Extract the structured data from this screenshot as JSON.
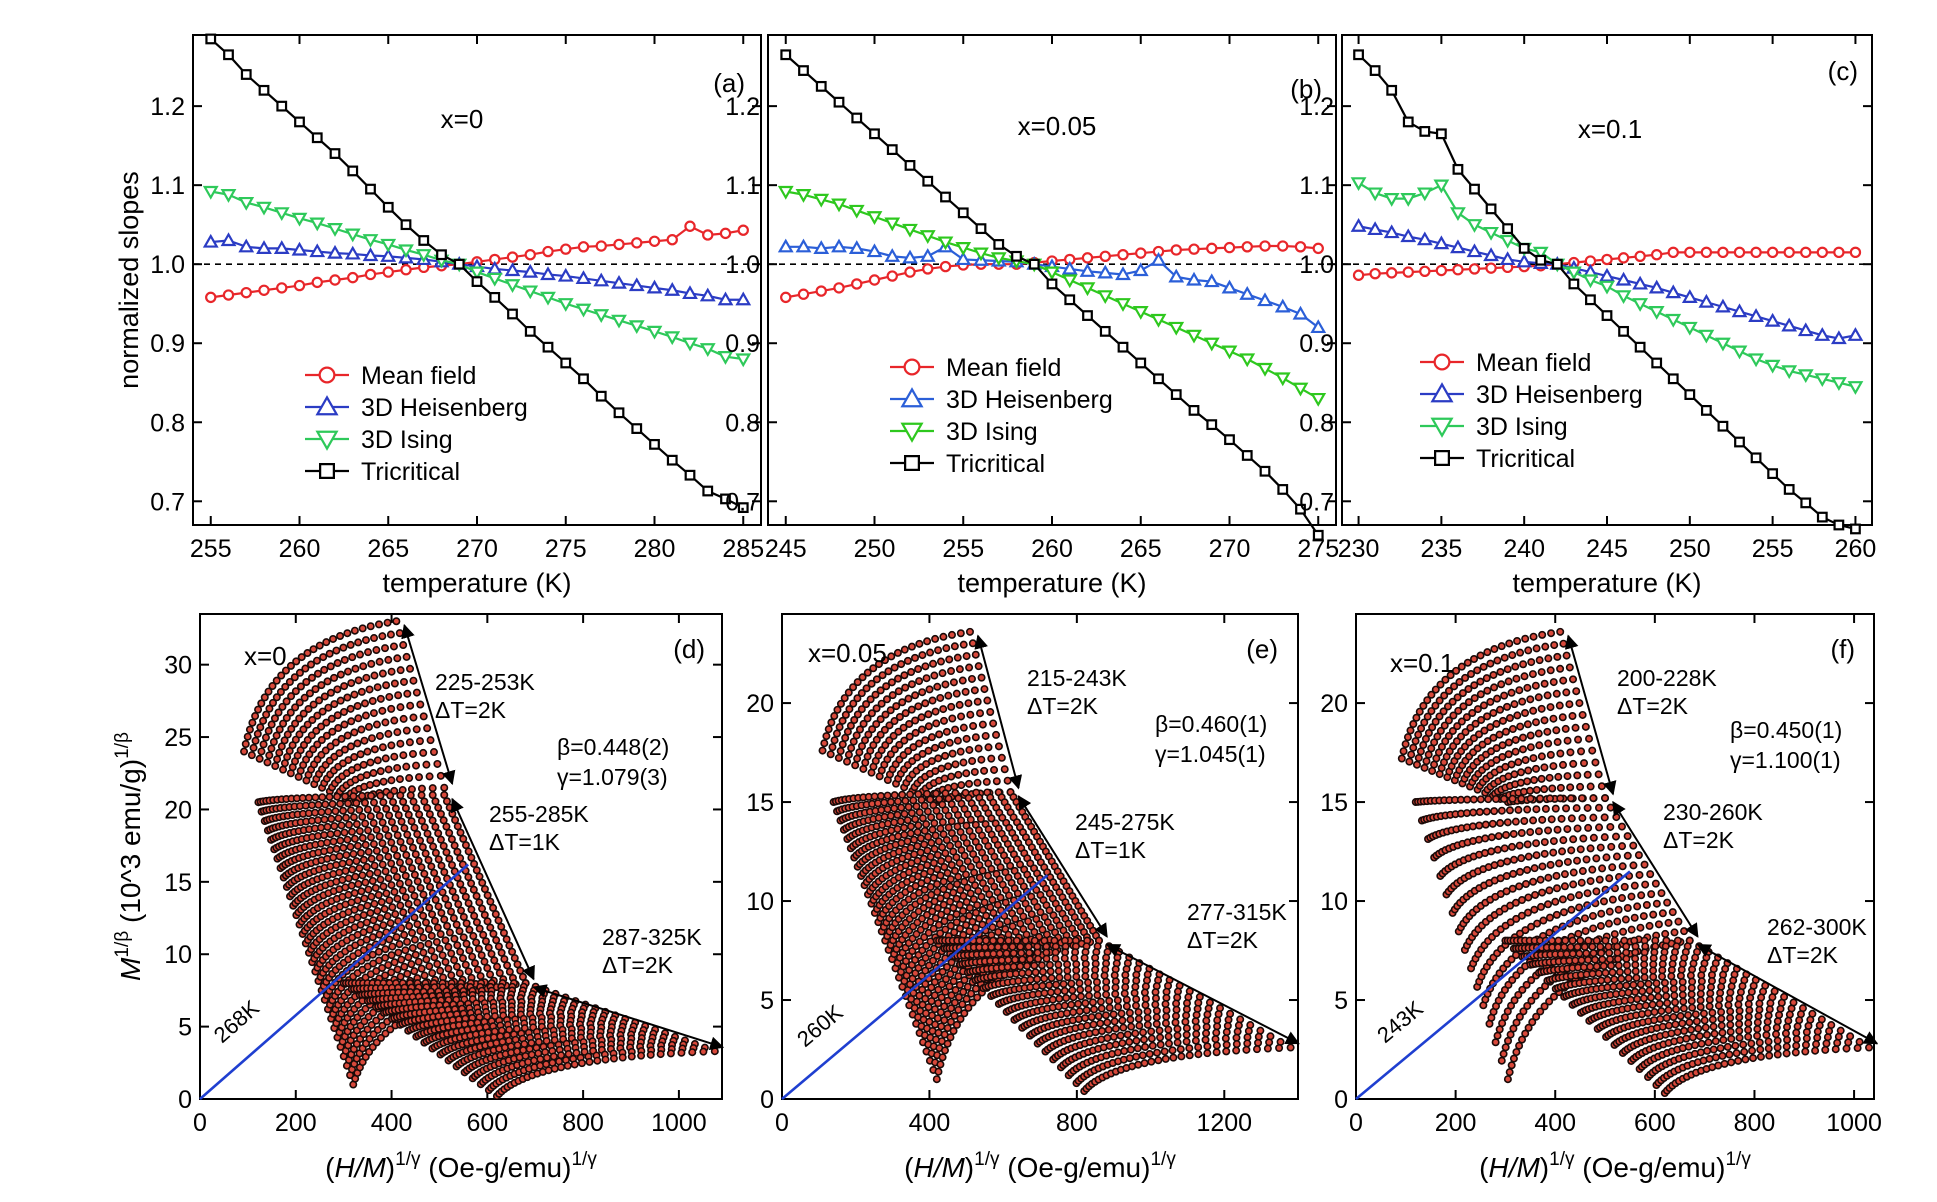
{
  "chart_data": [
    {
      "type": "line",
      "panel": "(a)",
      "annotation": "x=0",
      "xlabel": "temperature (K)",
      "ylabel": "normalized slopes",
      "xlim": [
        254,
        286
      ],
      "ylim": [
        0.67,
        1.29
      ],
      "xticks": [
        255,
        260,
        265,
        270,
        275,
        280,
        285
      ],
      "yticks": [
        0.7,
        0.8,
        0.9,
        1.0,
        1.1,
        1.2
      ],
      "reference_line": 1.0,
      "legend_position": "lower-left",
      "x": [
        255,
        256,
        257,
        258,
        259,
        260,
        261,
        262,
        263,
        264,
        265,
        266,
        267,
        268,
        269,
        270,
        271,
        272,
        273,
        274,
        275,
        276,
        277,
        278,
        279,
        280,
        281,
        282,
        283,
        284,
        285
      ],
      "series": [
        {
          "name": "Mean field",
          "color": "#e8262a",
          "marker": "circle",
          "values": [
            0.958,
            0.961,
            0.964,
            0.967,
            0.97,
            0.973,
            0.977,
            0.98,
            0.983,
            0.987,
            0.99,
            0.993,
            0.996,
            0.998,
            1.0,
            1.003,
            1.006,
            1.009,
            1.012,
            1.016,
            1.019,
            1.022,
            1.023,
            1.025,
            1.027,
            1.029,
            1.031,
            1.048,
            1.037,
            1.039,
            1.043
          ]
        },
        {
          "name": "3D Heisenberg",
          "color": "#2b3cc4",
          "marker": "triangle-up",
          "values": [
            1.028,
            1.03,
            1.022,
            1.02,
            1.02,
            1.018,
            1.016,
            1.014,
            1.013,
            1.011,
            1.01,
            1.008,
            1.006,
            1.003,
            1.0,
            0.997,
            0.994,
            0.992,
            0.99,
            0.987,
            0.985,
            0.982,
            0.979,
            0.976,
            0.973,
            0.97,
            0.967,
            0.963,
            0.96,
            0.955,
            0.955
          ]
        },
        {
          "name": "3D Ising",
          "color": "#2ec95a",
          "marker": "triangle-down",
          "values": [
            1.092,
            1.088,
            1.078,
            1.072,
            1.065,
            1.058,
            1.052,
            1.045,
            1.038,
            1.031,
            1.025,
            1.018,
            1.012,
            1.005,
            1.0,
            0.99,
            0.982,
            0.974,
            0.966,
            0.958,
            0.95,
            0.943,
            0.936,
            0.929,
            0.922,
            0.915,
            0.908,
            0.9,
            0.893,
            0.883,
            0.88
          ]
        },
        {
          "name": "Tricritical",
          "color": "#000000",
          "marker": "square",
          "values": [
            1.285,
            1.265,
            1.24,
            1.22,
            1.2,
            1.18,
            1.16,
            1.14,
            1.118,
            1.095,
            1.072,
            1.05,
            1.03,
            1.012,
            1.0,
            0.978,
            0.958,
            0.937,
            0.915,
            0.895,
            0.875,
            0.855,
            0.833,
            0.812,
            0.792,
            0.772,
            0.752,
            0.733,
            0.713,
            0.703,
            0.692
          ]
        }
      ]
    },
    {
      "type": "line",
      "panel": "(b)",
      "annotation": "x=0.05",
      "xlabel": "temperature (K)",
      "ylabel": "",
      "xlim": [
        244,
        276
      ],
      "ylim": [
        0.67,
        1.29
      ],
      "xticks": [
        245,
        250,
        255,
        260,
        265,
        270,
        275
      ],
      "yticks": [
        0.7,
        0.8,
        0.9,
        1.0,
        1.1,
        1.2
      ],
      "reference_line": 1.0,
      "legend_position": "lower-left",
      "x": [
        245,
        246,
        247,
        248,
        249,
        250,
        251,
        252,
        253,
        254,
        255,
        256,
        257,
        258,
        259,
        260,
        261,
        262,
        263,
        264,
        265,
        266,
        267,
        268,
        269,
        270,
        271,
        272,
        273,
        274,
        275
      ],
      "series": [
        {
          "name": "Mean field",
          "color": "#e8262a",
          "marker": "circle",
          "values": [
            0.958,
            0.962,
            0.966,
            0.97,
            0.975,
            0.98,
            0.985,
            0.99,
            0.994,
            0.997,
            0.999,
            1.0,
            1.0,
            1.0,
            1.002,
            1.004,
            1.006,
            1.008,
            1.01,
            1.012,
            1.014,
            1.016,
            1.018,
            1.019,
            1.02,
            1.021,
            1.022,
            1.023,
            1.023,
            1.022,
            1.02
          ]
        },
        {
          "name": "3D Heisenberg",
          "color": "#2b5fd8",
          "marker": "triangle-up",
          "values": [
            1.022,
            1.022,
            1.02,
            1.022,
            1.02,
            1.016,
            1.01,
            1.008,
            1.01,
            1.022,
            1.006,
            1.005,
            1.004,
            1.003,
            1.0,
            0.997,
            0.994,
            0.991,
            0.989,
            0.987,
            0.992,
            1.005,
            0.984,
            0.98,
            0.978,
            0.97,
            0.962,
            0.954,
            0.946,
            0.937,
            0.92
          ]
        },
        {
          "name": "3D Ising",
          "color": "#2ec81e",
          "marker": "triangle-down",
          "values": [
            1.092,
            1.088,
            1.082,
            1.076,
            1.068,
            1.06,
            1.052,
            1.044,
            1.036,
            1.028,
            1.021,
            1.014,
            1.008,
            1.004,
            1.0,
            0.99,
            0.98,
            0.97,
            0.96,
            0.95,
            0.94,
            0.93,
            0.92,
            0.91,
            0.9,
            0.89,
            0.88,
            0.868,
            0.856,
            0.843,
            0.83
          ]
        },
        {
          "name": "Tricritical",
          "color": "#000000",
          "marker": "square",
          "values": [
            1.265,
            1.245,
            1.225,
            1.205,
            1.185,
            1.165,
            1.145,
            1.125,
            1.105,
            1.085,
            1.065,
            1.045,
            1.025,
            1.01,
            1.0,
            0.975,
            0.955,
            0.935,
            0.915,
            0.895,
            0.875,
            0.855,
            0.835,
            0.815,
            0.797,
            0.778,
            0.758,
            0.738,
            0.715,
            0.69,
            0.657
          ]
        }
      ]
    },
    {
      "type": "line",
      "panel": "(c)",
      "annotation": "x=0.1",
      "xlabel": "temperature (K)",
      "ylabel": "",
      "xlim": [
        229,
        261
      ],
      "ylim": [
        0.67,
        1.29
      ],
      "xticks": [
        230,
        235,
        240,
        245,
        250,
        255,
        260
      ],
      "yticks": [
        0.7,
        0.8,
        0.9,
        1.0,
        1.1,
        1.2
      ],
      "reference_line": 1.0,
      "legend_position": "lower-left",
      "x": [
        230,
        231,
        232,
        233,
        234,
        235,
        236,
        237,
        238,
        239,
        240,
        241,
        242,
        243,
        244,
        245,
        246,
        247,
        248,
        249,
        250,
        251,
        252,
        253,
        254,
        255,
        256,
        257,
        258,
        259,
        260
      ],
      "series": [
        {
          "name": "Mean field",
          "color": "#e8262a",
          "marker": "circle",
          "values": [
            0.986,
            0.988,
            0.989,
            0.99,
            0.991,
            0.992,
            0.993,
            0.994,
            0.995,
            0.996,
            0.997,
            0.998,
            1.0,
            1.002,
            1.004,
            1.006,
            1.008,
            1.01,
            1.012,
            1.015,
            1.015,
            1.015,
            1.015,
            1.015,
            1.015,
            1.015,
            1.015,
            1.015,
            1.015,
            1.015,
            1.015
          ]
        },
        {
          "name": "3D Heisenberg",
          "color": "#2b3cc4",
          "marker": "triangle-up",
          "values": [
            1.048,
            1.044,
            1.04,
            1.035,
            1.031,
            1.026,
            1.021,
            1.016,
            1.011,
            1.006,
            1.003,
            1.001,
            1.0,
            0.995,
            0.99,
            0.985,
            0.98,
            0.975,
            0.97,
            0.964,
            0.958,
            0.952,
            0.946,
            0.94,
            0.934,
            0.928,
            0.922,
            0.916,
            0.91,
            0.906,
            0.91
          ]
        },
        {
          "name": "3D Ising",
          "color": "#2ec95a",
          "marker": "triangle-down",
          "values": [
            1.103,
            1.09,
            1.083,
            1.083,
            1.09,
            1.1,
            1.065,
            1.05,
            1.04,
            1.03,
            1.02,
            1.015,
            1.0,
            0.99,
            0.98,
            0.972,
            0.96,
            0.95,
            0.94,
            0.93,
            0.92,
            0.91,
            0.9,
            0.89,
            0.88,
            0.872,
            0.865,
            0.86,
            0.855,
            0.85,
            0.845
          ]
        },
        {
          "name": "Tricritical",
          "color": "#000000",
          "marker": "square",
          "values": [
            1.265,
            1.245,
            1.22,
            1.18,
            1.168,
            1.165,
            1.12,
            1.095,
            1.07,
            1.045,
            1.02,
            1.005,
            1.0,
            0.975,
            0.955,
            0.935,
            0.915,
            0.895,
            0.875,
            0.855,
            0.835,
            0.815,
            0.795,
            0.775,
            0.755,
            0.735,
            0.715,
            0.698,
            0.68,
            0.67,
            0.665
          ]
        }
      ]
    },
    {
      "type": "scatter",
      "panel": "(d)",
      "annotation": "x=0",
      "xlabel": "(H/M)^{1/γ} (Oe-g/emu)^{1/γ}",
      "ylabel": "M^{1/β} (10^3 emu/g)^{1/β}",
      "xlim": [
        0,
        1090
      ],
      "ylim": [
        0,
        33.5
      ],
      "xticks": [
        0,
        200,
        400,
        600,
        800,
        1000
      ],
      "yticks": [
        0,
        5,
        10,
        15,
        20,
        25,
        30
      ],
      "fit_line": {
        "label": "268K",
        "x": [
          0,
          560
        ],
        "y": [
          0,
          16.2
        ],
        "color": "#1f3fd0"
      },
      "isotherms": {
        "range_labels": [
          {
            "range": "225-253K",
            "step": "ΔT=2K"
          },
          {
            "range": "255-285K",
            "step": "ΔT=1K"
          },
          {
            "range": "287-325K",
            "step": "ΔT=2K"
          }
        ],
        "groups": [
          {
            "count": 15,
            "x_start": [
              92,
              320
            ],
            "y_start": [
              24.0,
              20.5
            ],
            "x_end": [
              410,
              510
            ],
            "y_end": [
              33.0,
              21.5
            ]
          },
          {
            "count": 31,
            "x_start": [
              122,
              320
            ],
            "y_start": [
              20.5,
              1.0
            ],
            "x_end": [
              510,
              680
            ],
            "y_end": [
              21.0,
              8.0
            ]
          },
          {
            "count": 20,
            "x_start": [
              300,
              620
            ],
            "y_start": [
              8.0,
              0.2
            ],
            "x_end": [
              680,
              1075
            ],
            "y_end": [
              8.0,
              3.3
            ]
          }
        ]
      },
      "params": [
        "β=0.448(2)",
        "γ=1.079(3)"
      ]
    },
    {
      "type": "scatter",
      "panel": "(e)",
      "annotation": "x=0.05",
      "xlabel": "(H/M)^{1/γ} (Oe-g/emu)^{1/γ}",
      "ylabel": "",
      "xlim": [
        0,
        1400
      ],
      "ylim": [
        0,
        24.5
      ],
      "xticks": [
        0,
        400,
        800,
        1200
      ],
      "yticks": [
        0,
        5,
        10,
        15,
        20
      ],
      "fit_line": {
        "label": "260K",
        "x": [
          0,
          720
        ],
        "y": [
          0,
          11.3
        ],
        "color": "#1f3fd0"
      },
      "isotherms": {
        "range_labels": [
          {
            "range": "215-243K",
            "step": "ΔT=2K"
          },
          {
            "range": "245-275K",
            "step": "ΔT=1K"
          },
          {
            "range": "277-315K",
            "step": "ΔT=2K"
          }
        ],
        "groups": [
          {
            "count": 15,
            "x_start": [
              110,
              420
            ],
            "y_start": [
              17.6,
              15.0
            ],
            "x_end": [
              510,
              620
            ],
            "y_end": [
              23.6,
              15.5
            ]
          },
          {
            "count": 31,
            "x_start": [
              140,
              420
            ],
            "y_start": [
              15.0,
              1.0
            ],
            "x_end": [
              620,
              860
            ],
            "y_end": [
              15.5,
              8.0
            ]
          },
          {
            "count": 20,
            "x_start": [
              420,
              820
            ],
            "y_start": [
              8.0,
              0.4
            ],
            "x_end": [
              860,
              1380
            ],
            "y_end": [
              8.0,
              2.6
            ]
          }
        ]
      },
      "params": [
        "β=0.460(1)",
        "γ=1.045(1)"
      ]
    },
    {
      "type": "scatter",
      "panel": "(f)",
      "annotation": "x=0.1",
      "xlabel": "(H/M)^{1/γ} (Oe-g/emu)^{1/γ}",
      "ylabel": "",
      "xlim": [
        0,
        1040
      ],
      "ylim": [
        0,
        24.5
      ],
      "xticks": [
        0,
        200,
        400,
        600,
        800,
        1000
      ],
      "yticks": [
        0,
        5,
        10,
        15,
        20
      ],
      "fit_line": {
        "label": "243K",
        "x": [
          0,
          550
        ],
        "y": [
          0,
          11.5
        ],
        "color": "#1f3fd0"
      },
      "isotherms": {
        "range_labels": [
          {
            "range": "200-228K",
            "step": "ΔT=2K"
          },
          {
            "range": "230-260K",
            "step": "ΔT=2K"
          },
          {
            "range": "262-300K",
            "step": "ΔT=2K"
          }
        ],
        "groups": [
          {
            "count": 15,
            "x_start": [
              92,
              305
            ],
            "y_start": [
              17.2,
              15.0
            ],
            "x_end": [
              410,
              500
            ],
            "y_end": [
              23.6,
              15.2
            ]
          },
          {
            "count": 16,
            "x_start": [
              120,
              305
            ],
            "y_start": [
              15.0,
              1.0
            ],
            "x_end": [
              500,
              670
            ],
            "y_end": [
              15.2,
              8.0
            ]
          },
          {
            "count": 20,
            "x_start": [
              300,
              620
            ],
            "y_start": [
              8.0,
              0.3
            ],
            "x_end": [
              670,
              1030
            ],
            "y_end": [
              8.0,
              2.6
            ]
          }
        ]
      },
      "params": [
        "β=0.450(1)",
        "γ=1.100(1)"
      ]
    }
  ]
}
